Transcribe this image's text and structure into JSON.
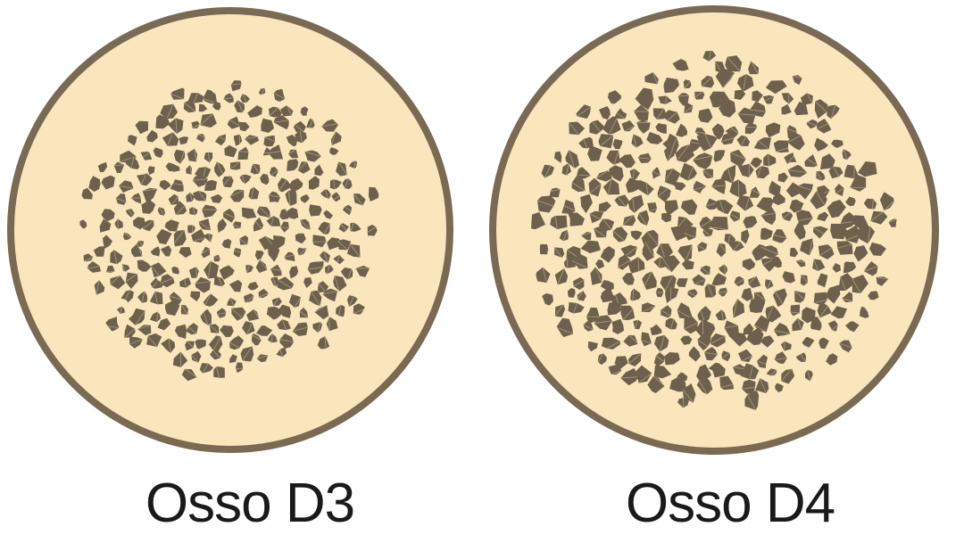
{
  "colors": {
    "background": "#ffffff",
    "cortex": "#f9e6bd",
    "outline": "#7a6a53",
    "pore": "#6e604c",
    "pore_highlight": "#b3a587",
    "text": "#1a1a1a"
  },
  "panels": [
    {
      "label": "Osso D3",
      "trabecular_pattern": "medium-density"
    },
    {
      "label": "Osso D4",
      "trabecular_pattern": "sparse-high-porosity"
    }
  ]
}
